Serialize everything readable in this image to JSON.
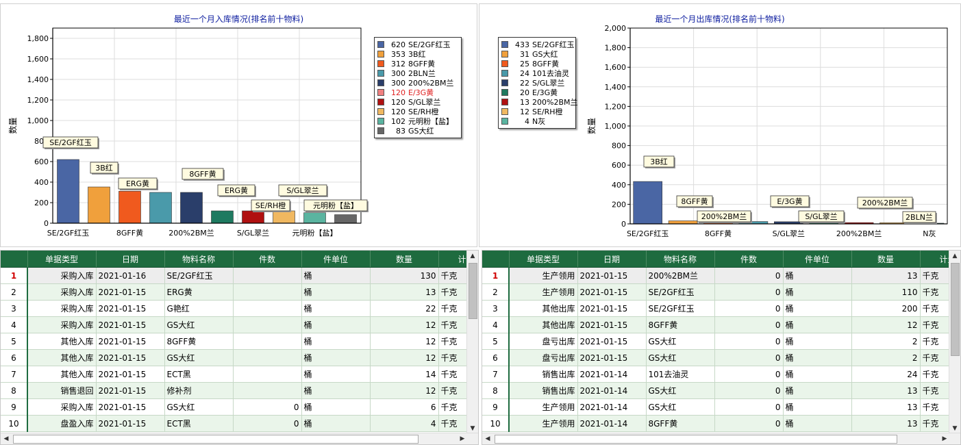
{
  "inbound_chart": {
    "title": "最近一个月入库情况(排名前十物料)",
    "ylabel": "数量",
    "yticks": [
      "0",
      "200",
      "400",
      "600",
      "800",
      "1,000",
      "1,200",
      "1,400",
      "1,600",
      "1,800"
    ],
    "xticks": [
      "SE/2GF红玉",
      "8GFF黄",
      "200%2BM兰",
      "S/GL翠兰",
      "元明粉【盐】"
    ],
    "callouts": [
      "SE/2GF红玉",
      "3B红",
      "ERG黄",
      "8GFF黄",
      "ERG黄",
      "SE/RH橙",
      "S/GL翠兰",
      "元明粉【盐】"
    ],
    "legend": [
      {
        "num": "620",
        "name": "SE/2GF红玉",
        "color": "#4a66a4"
      },
      {
        "num": "353",
        "name": "3B红",
        "color": "#f0a03c"
      },
      {
        "num": "312",
        "name": "8GFF黄",
        "color": "#f05a1e"
      },
      {
        "num": "300",
        "name": "2BLN兰",
        "color": "#4a9aaa"
      },
      {
        "num": "300",
        "name": "200%2BM兰",
        "color": "#2a3e6a"
      },
      {
        "num": "120",
        "name": "E/3G黄",
        "color": "#f08080",
        "highlight": "#e02020"
      },
      {
        "num": "120",
        "name": "S/GL翠兰",
        "color": "#b01010"
      },
      {
        "num": "120",
        "name": "SE/RH橙",
        "color": "#f0b860"
      },
      {
        "num": "102",
        "name": "元明粉【盐】",
        "color": "#5ab4a0"
      },
      {
        "num": "83",
        "name": "GS大红",
        "color": "#666666"
      }
    ]
  },
  "outbound_chart": {
    "title": "最近一个月出库情况(排名前十物料)",
    "ylabel": "数量",
    "yticks": [
      "0",
      "200",
      "400",
      "600",
      "800",
      "1,000",
      "1,200",
      "1,400",
      "1,600",
      "1,800",
      "2,000"
    ],
    "xticks": [
      "SE/2GF红玉",
      "8GFF黄",
      "S/GL翠兰",
      "200%2BM兰",
      "N灰"
    ],
    "callouts": [
      "3B红",
      "8GFF黄",
      "200%2BM兰",
      "E/3G黄",
      "S/GL翠兰",
      "200%2BM兰",
      "2BLN兰"
    ],
    "legend": [
      {
        "num": "433",
        "name": "SE/2GF红玉",
        "color": "#4a66a4"
      },
      {
        "num": "31",
        "name": "GS大红",
        "color": "#f0a03c"
      },
      {
        "num": "25",
        "name": "8GFF黄",
        "color": "#f05a1e"
      },
      {
        "num": "24",
        "name": "101去油灵",
        "color": "#4a9aaa"
      },
      {
        "num": "22",
        "name": "S/GL翠兰",
        "color": "#2a3e6a"
      },
      {
        "num": "20",
        "name": "E/3G黄",
        "color": "#1e7a60"
      },
      {
        "num": "13",
        "name": "200%2BM兰",
        "color": "#b01010"
      },
      {
        "num": "12",
        "name": "SE/RH橙",
        "color": "#f0b860"
      },
      {
        "num": "4",
        "name": "N灰",
        "color": "#5ab4a0"
      }
    ]
  },
  "chart_data": [
    {
      "type": "bar",
      "title": "最近一个月入库情况(排名前十物料)",
      "ylabel": "数量",
      "ylim": [
        0,
        1900
      ],
      "categories": [
        "SE/2GF红玉",
        "3B红",
        "8GFF黄",
        "2BLN兰",
        "200%2BM兰",
        "E/3G黄",
        "S/GL翠兰",
        "SE/RH橙",
        "元明粉【盐】",
        "GS大红"
      ],
      "values": [
        620,
        353,
        312,
        300,
        300,
        120,
        120,
        120,
        102,
        83
      ],
      "colors": [
        "#4a66a4",
        "#f0a03c",
        "#f05a1e",
        "#4a9aaa",
        "#2a3e6a",
        "#1e7a60",
        "#b01010",
        "#f0b860",
        "#5ab4a0",
        "#666666"
      ],
      "legend": "right"
    },
    {
      "type": "bar",
      "title": "最近一个月出库情况(排名前十物料)",
      "ylabel": "数量",
      "ylim": [
        0,
        2000
      ],
      "categories": [
        "SE/2GF红玉",
        "GS大红",
        "8GFF黄",
        "101去油灵",
        "S/GL翠兰",
        "E/3G黄",
        "200%2BM兰",
        "SE/RH橙",
        "N灰"
      ],
      "values": [
        433,
        31,
        25,
        24,
        22,
        20,
        13,
        12,
        4
      ],
      "colors": [
        "#4a66a4",
        "#f0a03c",
        "#f05a1e",
        "#4a9aaa",
        "#2a3e6a",
        "#1e7a60",
        "#b01010",
        "#f0b860",
        "#5ab4a0"
      ],
      "legend": "left"
    }
  ],
  "left_table": {
    "columns": [
      "单据类型",
      "日期",
      "物料名称",
      "件数",
      "件单位",
      "数量",
      "计量"
    ],
    "rows": [
      {
        "n": "1",
        "type": "采购入库",
        "date": "2021-01-16",
        "name": "SE/2GF红玉",
        "pcs": "",
        "unit": "桶",
        "qty": "130",
        "measure": "千克"
      },
      {
        "n": "2",
        "type": "采购入库",
        "date": "2021-01-15",
        "name": "ERG黄",
        "pcs": "",
        "unit": "桶",
        "qty": "13",
        "measure": "千克"
      },
      {
        "n": "3",
        "type": "采购入库",
        "date": "2021-01-15",
        "name": "G艳红",
        "pcs": "",
        "unit": "桶",
        "qty": "22",
        "measure": "千克"
      },
      {
        "n": "4",
        "type": "采购入库",
        "date": "2021-01-15",
        "name": "GS大红",
        "pcs": "",
        "unit": "桶",
        "qty": "12",
        "measure": "千克"
      },
      {
        "n": "5",
        "type": "其他入库",
        "date": "2021-01-15",
        "name": "8GFF黄",
        "pcs": "",
        "unit": "桶",
        "qty": "12",
        "measure": "千克"
      },
      {
        "n": "6",
        "type": "其他入库",
        "date": "2021-01-15",
        "name": "GS大红",
        "pcs": "",
        "unit": "桶",
        "qty": "12",
        "measure": "千克"
      },
      {
        "n": "7",
        "type": "其他入库",
        "date": "2021-01-15",
        "name": "ECT黑",
        "pcs": "",
        "unit": "桶",
        "qty": "14",
        "measure": "千克"
      },
      {
        "n": "8",
        "type": "销售退回",
        "date": "2021-01-15",
        "name": "修补剂",
        "pcs": "",
        "unit": "桶",
        "qty": "12",
        "measure": "千克"
      },
      {
        "n": "9",
        "type": "采购入库",
        "date": "2021-01-15",
        "name": "GS大红",
        "pcs": "0",
        "unit": "桶",
        "qty": "6",
        "measure": "千克"
      },
      {
        "n": "10",
        "type": "盘盈入库",
        "date": "2021-01-15",
        "name": "ECT黑",
        "pcs": "0",
        "unit": "桶",
        "qty": "4",
        "measure": "千克"
      }
    ]
  },
  "right_table": {
    "columns": [
      "单据类型",
      "日期",
      "物料名称",
      "件数",
      "件单位",
      "数量",
      "计量"
    ],
    "rows": [
      {
        "n": "1",
        "type": "生产领用",
        "date": "2021-01-15",
        "name": "200%2BM兰",
        "pcs": "0",
        "unit": "桶",
        "qty": "13",
        "measure": "千克"
      },
      {
        "n": "2",
        "type": "生产领用",
        "date": "2021-01-15",
        "name": "SE/2GF红玉",
        "pcs": "0",
        "unit": "桶",
        "qty": "110",
        "measure": "千克"
      },
      {
        "n": "3",
        "type": "其他出库",
        "date": "2021-01-15",
        "name": "SE/2GF红玉",
        "pcs": "0",
        "unit": "桶",
        "qty": "200",
        "measure": "千克"
      },
      {
        "n": "4",
        "type": "其他出库",
        "date": "2021-01-15",
        "name": "8GFF黄",
        "pcs": "0",
        "unit": "桶",
        "qty": "12",
        "measure": "千克"
      },
      {
        "n": "5",
        "type": "盘亏出库",
        "date": "2021-01-15",
        "name": "GS大红",
        "pcs": "0",
        "unit": "桶",
        "qty": "2",
        "measure": "千克"
      },
      {
        "n": "6",
        "type": "盘亏出库",
        "date": "2021-01-15",
        "name": "GS大红",
        "pcs": "0",
        "unit": "桶",
        "qty": "2",
        "measure": "千克"
      },
      {
        "n": "7",
        "type": "销售出库",
        "date": "2021-01-14",
        "name": "101去油灵",
        "pcs": "0",
        "unit": "桶",
        "qty": "24",
        "measure": "千克"
      },
      {
        "n": "8",
        "type": "销售出库",
        "date": "2021-01-14",
        "name": "GS大红",
        "pcs": "0",
        "unit": "桶",
        "qty": "13",
        "measure": "千克"
      },
      {
        "n": "9",
        "type": "生产领用",
        "date": "2021-01-14",
        "name": "GS大红",
        "pcs": "0",
        "unit": "桶",
        "qty": "13",
        "measure": "千克"
      },
      {
        "n": "10",
        "type": "生产领用",
        "date": "2021-01-14",
        "name": "8GFF黄",
        "pcs": "0",
        "unit": "桶",
        "qty": "13",
        "measure": "千克"
      }
    ]
  },
  "icons": {
    "up": "▲",
    "down": "▼",
    "left": "◀",
    "right": "▶"
  }
}
